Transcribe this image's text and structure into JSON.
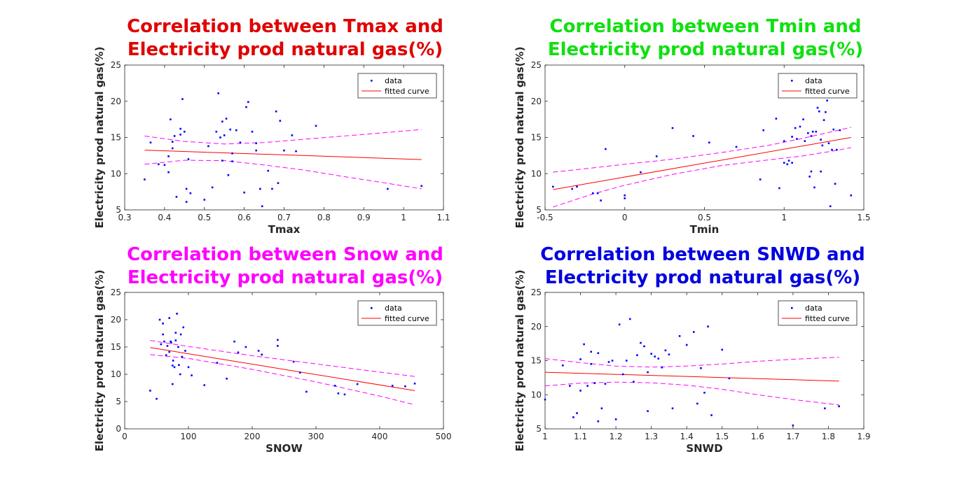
{
  "chart_data": [
    {
      "type": "scatter",
      "title_lines": [
        "Correlation between Tmax and",
        "Electricity prod natural gas(%)"
      ],
      "title_color": "#e00000",
      "xlabel": "Tmax",
      "ylabel": "Electricity prod natural gas(%)",
      "xlim": [
        0.3,
        1.1
      ],
      "ylim": [
        5,
        25
      ],
      "xticks": [
        "0.3",
        "0.4",
        "0.5",
        "0.6",
        "0.7",
        "0.8",
        "0.9",
        "1",
        "1.1"
      ],
      "yticks": [
        "5",
        "10",
        "15",
        "20",
        "25"
      ],
      "legend": {
        "position": "top-right",
        "entries": [
          "data",
          "fitted curve"
        ]
      },
      "series": [
        {
          "name": "data",
          "x": [
            0.35,
            0.365,
            0.385,
            0.4,
            0.41,
            0.415,
            0.42,
            0.425,
            0.43,
            0.44,
            0.445,
            0.45,
            0.455,
            0.46,
            0.465,
            0.42,
            0.5,
            0.51,
            0.52,
            0.53,
            0.535,
            0.54,
            0.545,
            0.55,
            0.555,
            0.56,
            0.565,
            0.57,
            0.58,
            0.59,
            0.6,
            0.605,
            0.61,
            0.62,
            0.63,
            0.64,
            0.645,
            0.66,
            0.67,
            0.68,
            0.685,
            0.69,
            0.7,
            0.72,
            0.73,
            0.78,
            0.96,
            1.045,
            0.455,
            0.41,
            0.44,
            0.57,
            0.545,
            0.63
          ],
          "y": [
            9.2,
            14.3,
            11.3,
            11.2,
            10.2,
            17.5,
            14.4,
            15.2,
            6.8,
            16.2,
            20.3,
            15.8,
            7.9,
            12,
            7.3,
            13.5,
            6.4,
            13.8,
            8.1,
            15.8,
            21.1,
            15,
            17.2,
            15.3,
            17.6,
            9.8,
            16.1,
            11.7,
            16,
            14.3,
            7.4,
            19.2,
            19.9,
            15.8,
            13.2,
            7.9,
            5.5,
            10.4,
            7.9,
            18.6,
            8.7,
            17.3,
            13.2,
            15.3,
            13.1,
            16.6,
            7.9,
            8.3,
            6.1,
            12.4,
            15.4,
            12.8,
            11.8,
            14.2
          ]
        },
        {
          "name": "fitted curve",
          "x": [
            0.35,
            1.045
          ],
          "y": [
            13.25,
            11.95
          ]
        }
      ],
      "confidence_band": {
        "x": [
          0.35,
          0.45,
          0.55,
          0.65,
          0.75,
          0.85,
          0.95,
          1.045
        ],
        "upper": [
          15.2,
          14.45,
          14.1,
          14.3,
          14.75,
          15.2,
          15.65,
          16.1
        ],
        "lower": [
          11.3,
          11.85,
          11.8,
          11.2,
          10.5,
          9.6,
          8.75,
          7.9
        ]
      }
    },
    {
      "type": "scatter",
      "title_lines": [
        "Correlation between Tmin and",
        "Electricity prod natural gas(%)"
      ],
      "title_color": "#10e010",
      "xlabel": "Tmin",
      "ylabel": "Electricity prod natural gas(%)",
      "xlim": [
        -0.5,
        1.5
      ],
      "ylim": [
        5,
        25
      ],
      "xticks": [
        "-0.5",
        "0",
        "0.5",
        "1",
        "1.5"
      ],
      "yticks": [
        "5",
        "10",
        "15",
        "20",
        "25"
      ],
      "legend": {
        "position": "top-right",
        "entries": [
          "data",
          "fitted curve"
        ]
      },
      "series": [
        {
          "name": "data",
          "x": [
            -0.45,
            -0.33,
            -0.3,
            -0.2,
            -0.17,
            -0.15,
            -0.12,
            0,
            0,
            0.1,
            0.2,
            0.3,
            0.43,
            0.53,
            0.7,
            0.85,
            0.87,
            0.95,
            0.97,
            1.0,
            1.02,
            1.03,
            1.05,
            1.07,
            1.08,
            1.1,
            1.12,
            1.13,
            1.15,
            1.16,
            1.17,
            1.18,
            1.19,
            1.2,
            1.21,
            1.22,
            1.23,
            1.24,
            1.25,
            1.26,
            1.27,
            1.28,
            1.29,
            1.3,
            1.31,
            1.32,
            1.33,
            1.35,
            1.42,
            1.0,
            1.05,
            1.17,
            1.23
          ],
          "y": [
            8.2,
            7.9,
            8.2,
            7.3,
            7.3,
            6.3,
            13.4,
            6.6,
            7.0,
            10.2,
            12.4,
            16.3,
            15.2,
            14.3,
            13.7,
            9.2,
            16,
            17.6,
            8,
            11.5,
            11.3,
            11.8,
            15.1,
            16.3,
            14.8,
            16.5,
            17.5,
            14.5,
            15.6,
            9.6,
            10.3,
            15.8,
            8.1,
            15.8,
            19.1,
            18.6,
            14.7,
            13.9,
            17.4,
            18.5,
            20.1,
            14.2,
            5.5,
            13.3,
            16.1,
            8.6,
            13.3,
            16,
            7,
            14.5,
            11.5,
            15.2,
            10.3
          ]
        },
        {
          "name": "fitted curve",
          "x": [
            -0.45,
            1.42
          ],
          "y": [
            7.8,
            15.0
          ]
        }
      ],
      "confidence_band": {
        "x": [
          -0.45,
          -0.2,
          0.0,
          0.3,
          0.6,
          0.9,
          1.1,
          1.3,
          1.42
        ],
        "upper": [
          10.2,
          10.8,
          11.3,
          12.0,
          12.9,
          13.9,
          14.8,
          15.8,
          16.4
        ],
        "lower": [
          5.4,
          7.2,
          8.4,
          9.9,
          11.1,
          11.9,
          12.4,
          13.1,
          13.6
        ]
      }
    },
    {
      "type": "scatter",
      "title_lines": [
        "Correlation between Snow and",
        "Electricity prod natural gas(%)"
      ],
      "title_color": "#ff00ff",
      "xlabel": "SNOW",
      "ylabel": "Electricity prod natural gas(%)",
      "xlim": [
        0,
        500
      ],
      "ylim": [
        0,
        25
      ],
      "xticks": [
        "0",
        "100",
        "200",
        "300",
        "400",
        "500"
      ],
      "yticks": [
        "0",
        "5",
        "10",
        "15",
        "20",
        "25"
      ],
      "legend": {
        "position": "top-right",
        "entries": [
          "data",
          "fitted curve"
        ]
      },
      "series": [
        {
          "name": "data",
          "x": [
            40,
            50,
            55,
            57,
            60,
            62,
            65,
            67,
            70,
            72,
            73,
            75,
            76,
            78,
            80,
            80,
            82,
            84,
            85,
            87,
            88,
            90,
            92,
            95,
            100,
            105,
            125,
            145,
            160,
            172,
            178,
            190,
            210,
            215,
            240,
            240,
            265,
            275,
            285,
            330,
            335,
            345,
            365,
            420,
            440,
            455,
            60,
            70,
            75
          ],
          "y": [
            7,
            5.5,
            20,
            15.5,
            17.3,
            16,
            13.5,
            15.2,
            20.3,
            16,
            15.8,
            11.6,
            12.5,
            11.3,
            17.6,
            16.2,
            21.1,
            15,
            11.7,
            10,
            17.3,
            13.2,
            18.6,
            14.3,
            11.3,
            9.8,
            8,
            12.1,
            9.2,
            16,
            14,
            15,
            14.3,
            13.6,
            16.3,
            15.2,
            12.3,
            10.3,
            6.8,
            7.9,
            6.5,
            6.3,
            8.2,
            7.9,
            7.8,
            8.3,
            19.3,
            14.1,
            8.2
          ]
        },
        {
          "name": "fitted curve",
          "x": [
            40,
            455
          ],
          "y": [
            14.9,
            7.0
          ]
        }
      ],
      "confidence_band": {
        "x": [
          40,
          100,
          200,
          300,
          400,
          455
        ],
        "upper": [
          16.2,
          15.1,
          13.4,
          11.9,
          10.4,
          9.6
        ],
        "lower": [
          13.6,
          12.9,
          10.9,
          8.6,
          6.0,
          4.4
        ]
      }
    },
    {
      "type": "scatter",
      "title_lines": [
        "Correlation between SNWD and",
        "Electricity prod natural gas(%)"
      ],
      "title_color": "#0000e0",
      "xlabel": "SNWD",
      "ylabel": "Electricity prod natural gas(%)",
      "xlim": [
        1,
        1.9
      ],
      "ylim": [
        5,
        25
      ],
      "xticks": [
        "1",
        "1.1",
        "1.2",
        "1.3",
        "1.4",
        "1.5",
        "1.6",
        "1.7",
        "1.8",
        "1.9"
      ],
      "yticks": [
        "5",
        "10",
        "15",
        "20",
        "25"
      ],
      "legend": {
        "position": "top-right",
        "entries": [
          "data",
          "fitted curve"
        ]
      },
      "series": [
        {
          "name": "data",
          "x": [
            1.0,
            1.05,
            1.07,
            1.08,
            1.09,
            1.1,
            1.1,
            1.11,
            1.12,
            1.13,
            1.14,
            1.15,
            1.15,
            1.16,
            1.17,
            1.18,
            1.19,
            1.2,
            1.21,
            1.22,
            1.23,
            1.24,
            1.25,
            1.26,
            1.27,
            1.28,
            1.29,
            1.3,
            1.31,
            1.32,
            1.33,
            1.34,
            1.35,
            1.36,
            1.38,
            1.4,
            1.42,
            1.43,
            1.44,
            1.45,
            1.46,
            1.47,
            1.5,
            1.52,
            1.7,
            1.79,
            1.83,
            1.13,
            1.29
          ],
          "y": [
            9.3,
            14.3,
            11.3,
            6.7,
            7.3,
            15.2,
            10.6,
            17.4,
            11.3,
            16.3,
            11.7,
            16.1,
            6.1,
            8,
            11.6,
            14.8,
            15,
            6.4,
            20.3,
            13,
            15,
            21.1,
            11.9,
            15.8,
            17.6,
            17.1,
            7.6,
            16,
            15.6,
            15.3,
            14,
            16.5,
            15.9,
            8,
            18.6,
            17.3,
            19.2,
            8.7,
            13.9,
            10.3,
            20,
            7,
            16.6,
            12.4,
            5.5,
            8,
            8.3,
            14.5,
            13.3
          ]
        },
        {
          "name": "fitted curve",
          "x": [
            1.0,
            1.83
          ],
          "y": [
            13.3,
            12.0
          ]
        }
      ],
      "confidence_band": {
        "x": [
          1.0,
          1.1,
          1.2,
          1.3,
          1.4,
          1.5,
          1.6,
          1.7,
          1.83
        ],
        "upper": [
          15.3,
          14.7,
          14.2,
          14.05,
          14.2,
          14.5,
          14.9,
          15.2,
          15.5
        ],
        "lower": [
          11.3,
          11.7,
          11.85,
          11.75,
          11.4,
          10.8,
          10.0,
          9.3,
          8.5
        ]
      }
    }
  ]
}
